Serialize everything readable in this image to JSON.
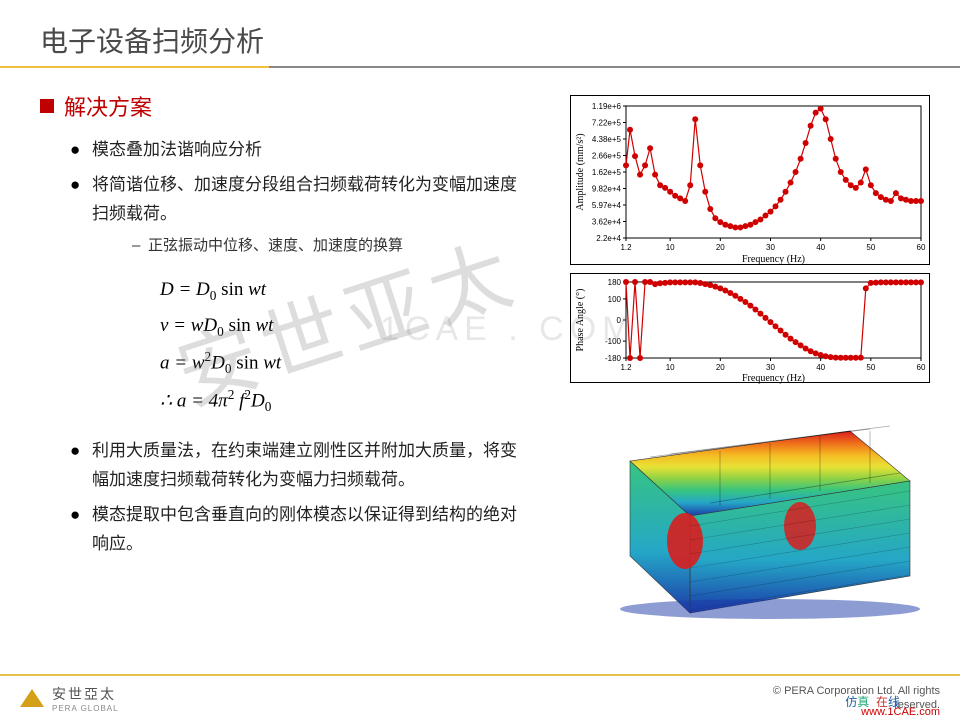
{
  "title": "电子设备扫频分析",
  "section_title": "解决方案",
  "bullets": {
    "b1": "模态叠加法谐响应分析",
    "b2": "将简谐位移、加速度分段组合扫频载荷转化为变幅加速度扫频载荷。",
    "b2_sub": "正弦振动中位移、速度、加速度的换算",
    "b3": "利用大质量法，在约束端建立刚性区并附加大质量，将变幅加速度扫频载荷转化为变幅力扫频载荷。",
    "b4": "模态提取中包含垂直向的刚体模态以保证得到结构的绝对响应。"
  },
  "equations": {
    "e1_html": "D = D<sub>0</sub> <span class='n'>sin</span> wt",
    "e2_html": "v = wD<sub>0</sub> <span class='n'>sin</span> wt",
    "e3_html": "a = w<sup>2</sup>D<sub>0</sub> <span class='n'>sin</span> wt",
    "e4_html": "∴ a = 4π<sup>2</sup> f<sup>2</sup>D<sub>0</sub>"
  },
  "chart1": {
    "title": "",
    "xlabel": "Frequency (Hz)",
    "ylabel": "Amplitude (mm/s²)",
    "xlim": [
      1.2,
      60
    ],
    "xticks": [
      1.2,
      10,
      20,
      30,
      40,
      50,
      60
    ],
    "ytick_labels": [
      "2.2e+4",
      "3.62e+4",
      "5.97e+4",
      "9.82e+4",
      "1.62e+5",
      "2.66e+5",
      "4.38e+5",
      "7.22e+5",
      "1.19e+6"
    ],
    "series_color": "#d00000",
    "marker": "circle",
    "marker_size": 3,
    "line_width": 1.2,
    "grid_color": "#000000",
    "background": "#ffffff",
    "data": [
      [
        1.2,
        0.55
      ],
      [
        2,
        0.82
      ],
      [
        3,
        0.62
      ],
      [
        4,
        0.48
      ],
      [
        5,
        0.55
      ],
      [
        6,
        0.68
      ],
      [
        7,
        0.48
      ],
      [
        8,
        0.4
      ],
      [
        9,
        0.38
      ],
      [
        10,
        0.35
      ],
      [
        11,
        0.32
      ],
      [
        12,
        0.3
      ],
      [
        13,
        0.28
      ],
      [
        14,
        0.4
      ],
      [
        15,
        0.9
      ],
      [
        16,
        0.55
      ],
      [
        17,
        0.35
      ],
      [
        18,
        0.22
      ],
      [
        19,
        0.15
      ],
      [
        20,
        0.12
      ],
      [
        21,
        0.1
      ],
      [
        22,
        0.09
      ],
      [
        23,
        0.08
      ],
      [
        24,
        0.08
      ],
      [
        25,
        0.09
      ],
      [
        26,
        0.1
      ],
      [
        27,
        0.12
      ],
      [
        28,
        0.14
      ],
      [
        29,
        0.17
      ],
      [
        30,
        0.2
      ],
      [
        31,
        0.24
      ],
      [
        32,
        0.29
      ],
      [
        33,
        0.35
      ],
      [
        34,
        0.42
      ],
      [
        35,
        0.5
      ],
      [
        36,
        0.6
      ],
      [
        37,
        0.72
      ],
      [
        38,
        0.85
      ],
      [
        39,
        0.95
      ],
      [
        40,
        0.98
      ],
      [
        41,
        0.9
      ],
      [
        42,
        0.75
      ],
      [
        43,
        0.6
      ],
      [
        44,
        0.5
      ],
      [
        45,
        0.44
      ],
      [
        46,
        0.4
      ],
      [
        47,
        0.38
      ],
      [
        48,
        0.42
      ],
      [
        49,
        0.52
      ],
      [
        50,
        0.4
      ],
      [
        51,
        0.34
      ],
      [
        52,
        0.31
      ],
      [
        53,
        0.29
      ],
      [
        54,
        0.28
      ],
      [
        55,
        0.34
      ],
      [
        56,
        0.3
      ],
      [
        57,
        0.29
      ],
      [
        58,
        0.28
      ],
      [
        59,
        0.28
      ],
      [
        60,
        0.28
      ]
    ]
  },
  "chart2": {
    "xlabel": "Frequency (Hz)",
    "ylabel": "Phase Angle (°)",
    "xlim": [
      1.2,
      60
    ],
    "xticks": [
      1.2,
      10,
      20,
      30,
      40,
      50,
      60
    ],
    "ylim": [
      -180,
      180
    ],
    "yticks": [
      -180,
      -100,
      0,
      100,
      180
    ],
    "series_color": "#d00000",
    "marker": "circle",
    "marker_size": 3,
    "line_width": 1.2,
    "data": [
      [
        1.2,
        180
      ],
      [
        2,
        -180
      ],
      [
        3,
        180
      ],
      [
        4,
        -180
      ],
      [
        5,
        180
      ],
      [
        6,
        180
      ],
      [
        7,
        170
      ],
      [
        8,
        174
      ],
      [
        9,
        176
      ],
      [
        10,
        178
      ],
      [
        11,
        178
      ],
      [
        12,
        178
      ],
      [
        13,
        178
      ],
      [
        14,
        178
      ],
      [
        15,
        178
      ],
      [
        16,
        175
      ],
      [
        17,
        170
      ],
      [
        18,
        165
      ],
      [
        19,
        158
      ],
      [
        20,
        150
      ],
      [
        21,
        140
      ],
      [
        22,
        128
      ],
      [
        23,
        115
      ],
      [
        24,
        100
      ],
      [
        25,
        85
      ],
      [
        26,
        68
      ],
      [
        27,
        50
      ],
      [
        28,
        30
      ],
      [
        29,
        10
      ],
      [
        30,
        -10
      ],
      [
        31,
        -30
      ],
      [
        32,
        -50
      ],
      [
        33,
        -70
      ],
      [
        34,
        -88
      ],
      [
        35,
        -105
      ],
      [
        36,
        -120
      ],
      [
        37,
        -135
      ],
      [
        38,
        -148
      ],
      [
        39,
        -158
      ],
      [
        40,
        -166
      ],
      [
        41,
        -172
      ],
      [
        42,
        -176
      ],
      [
        43,
        -178
      ],
      [
        44,
        -179
      ],
      [
        45,
        -179
      ],
      [
        46,
        -179
      ],
      [
        47,
        -179
      ],
      [
        48,
        -178
      ],
      [
        49,
        150
      ],
      [
        50,
        176
      ],
      [
        51,
        177
      ],
      [
        52,
        178
      ],
      [
        53,
        178
      ],
      [
        54,
        178
      ],
      [
        55,
        178
      ],
      [
        56,
        178
      ],
      [
        57,
        178
      ],
      [
        58,
        178
      ],
      [
        59,
        178
      ],
      [
        60,
        178
      ]
    ]
  },
  "fea": {
    "gradient_stops": [
      {
        "o": 0,
        "c": "#d81e1e"
      },
      {
        "o": 0.14,
        "c": "#ef6c1a"
      },
      {
        "o": 0.28,
        "c": "#f5b923"
      },
      {
        "o": 0.42,
        "c": "#e8e235"
      },
      {
        "o": 0.56,
        "c": "#8ed245"
      },
      {
        "o": 0.7,
        "c": "#37c481"
      },
      {
        "o": 0.84,
        "c": "#25a7c7"
      },
      {
        "o": 1.0,
        "c": "#1b3aa8"
      }
    ],
    "background": "#ffffff"
  },
  "watermark": "安世亚太",
  "watermark2": "1CAE . COM",
  "footer": {
    "logo_text": "安世亞太",
    "logo_sub": "PERA GLOBAL",
    "copyright1": "©  PERA Corporation Ltd. All rights",
    "copyright2": "reserved.",
    "badge": "仿真  在线",
    "url": "www.1CAE.com"
  },
  "colors": {
    "accent_red": "#c00000",
    "title_gray": "#4a4a4a",
    "underline_gold": "#f0c040",
    "underline_gray": "#888888"
  }
}
